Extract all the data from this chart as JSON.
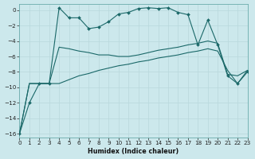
{
  "xlabel": "Humidex (Indice chaleur)",
  "bg_color": "#cce8ec",
  "grid_color": "#b8d8dc",
  "line_color": "#1a6868",
  "xlim": [
    0,
    23
  ],
  "ylim": [
    -16.5,
    0.8
  ],
  "yticks": [
    0,
    -2,
    -4,
    -6,
    -8,
    -10,
    -12,
    -14,
    -16
  ],
  "xticks": [
    0,
    1,
    2,
    3,
    4,
    5,
    6,
    7,
    8,
    9,
    10,
    11,
    12,
    13,
    14,
    15,
    16,
    17,
    18,
    19,
    20,
    21,
    22,
    23
  ],
  "curve1_x": [
    0,
    1,
    2,
    3,
    4,
    5,
    6,
    7,
    8,
    9,
    10,
    11,
    12,
    13,
    14,
    15,
    16,
    17,
    18,
    19,
    20,
    21,
    22,
    23
  ],
  "curve1_y": [
    -16,
    -12,
    -9.5,
    -9.5,
    0.3,
    -1.0,
    -1.0,
    -2.4,
    -2.2,
    -1.5,
    -0.5,
    -0.3,
    0.2,
    0.3,
    0.2,
    0.3,
    -0.3,
    -0.6,
    -4.5,
    -1.3,
    -4.5,
    -8.5,
    -9.5,
    -8.0
  ],
  "curve2_x": [
    0,
    1,
    2,
    3,
    4,
    5,
    6,
    7,
    8,
    9,
    10,
    11,
    12,
    13,
    14,
    15,
    16,
    17,
    18,
    19,
    20,
    21,
    22,
    23
  ],
  "curve2_y": [
    -16,
    -9.5,
    -9.5,
    -9.5,
    -4.8,
    -5.0,
    -5.3,
    -5.5,
    -5.8,
    -5.8,
    -6.0,
    -6.0,
    -5.8,
    -5.5,
    -5.2,
    -5.0,
    -4.8,
    -4.5,
    -4.3,
    -4.0,
    -4.3,
    -8.3,
    -8.5,
    -7.8
  ],
  "curve3_x": [
    0,
    1,
    2,
    3,
    4,
    5,
    6,
    7,
    8,
    9,
    10,
    11,
    12,
    13,
    14,
    15,
    16,
    17,
    18,
    19,
    20,
    21,
    22,
    23
  ],
  "curve3_y": [
    -16,
    -9.5,
    -9.5,
    -9.5,
    -9.5,
    -9.0,
    -8.5,
    -8.2,
    -7.8,
    -7.5,
    -7.2,
    -7.0,
    -6.7,
    -6.5,
    -6.2,
    -6.0,
    -5.8,
    -5.5,
    -5.3,
    -5.0,
    -5.3,
    -7.8,
    -9.5,
    -7.8
  ]
}
